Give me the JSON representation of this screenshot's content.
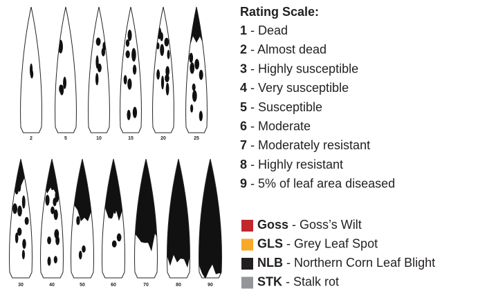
{
  "leaves": {
    "top_row": [
      "2",
      "5",
      "10",
      "15",
      "20",
      "25"
    ],
    "bottom_row": [
      "30",
      "40",
      "50",
      "60",
      "70",
      "80",
      "90"
    ]
  },
  "rating_scale": {
    "title": "Rating Scale:",
    "items": [
      {
        "score": "1",
        "label": "- Dead"
      },
      {
        "score": "2",
        "label": "- Almost dead"
      },
      {
        "score": "3",
        "label": "- Highly susceptible"
      },
      {
        "score": "4",
        "label": "- Very susceptible"
      },
      {
        "score": "5",
        "label": "- Susceptible"
      },
      {
        "score": "6",
        "label": "- Moderate"
      },
      {
        "score": "7",
        "label": "- Moderately resistant"
      },
      {
        "score": "8",
        "label": "- Highly resistant"
      },
      {
        "score": "9",
        "label": "- 5% of leaf area diseased"
      }
    ]
  },
  "legend": [
    {
      "code": "Goss",
      "label": "- Goss’s Wilt",
      "color": "#c1272d"
    },
    {
      "code": "GLS",
      "label": "- Grey Leaf Spot",
      "color": "#f7a928"
    },
    {
      "code": "NLB",
      "label": "- Northern Corn Leaf Blight",
      "color": "#231f20"
    },
    {
      "code": "STK",
      "label": "- Stalk rot",
      "color": "#939598"
    }
  ]
}
